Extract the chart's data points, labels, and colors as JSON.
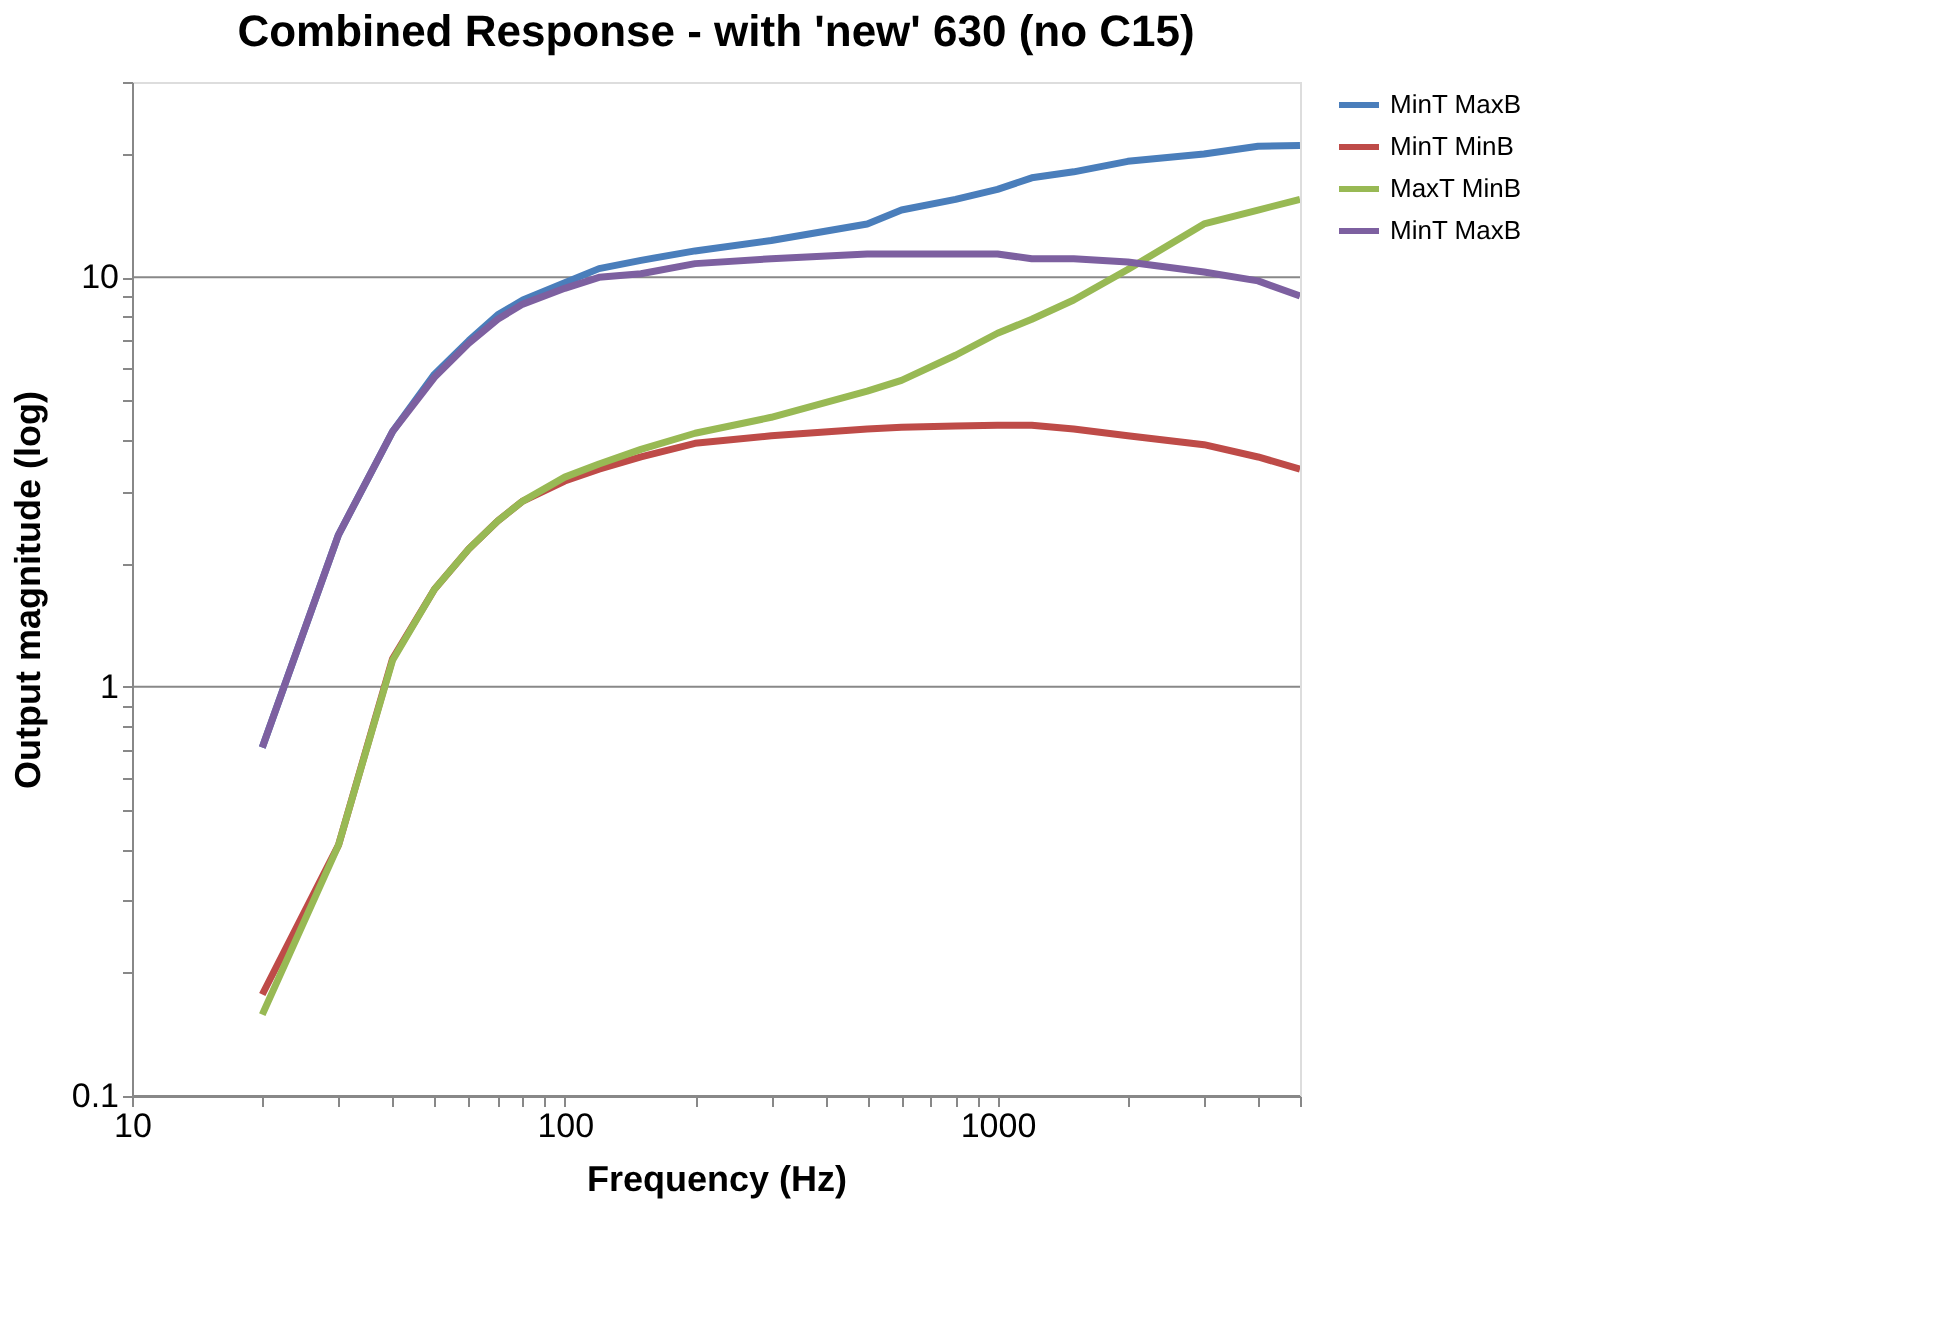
{
  "chart_data": {
    "type": "line",
    "title": "Combined Response - with 'new' 630 (no C15)",
    "xlabel": "Frequency (Hz)",
    "ylabel": "Output magnitude (log)",
    "log": "xy",
    "grid": "y",
    "legend": "right",
    "line_style": "solid",
    "marker": "none",
    "x": [
      20,
      30,
      40,
      50,
      60,
      70,
      80,
      100,
      120,
      150,
      200,
      300,
      500,
      600,
      800,
      1000,
      1200,
      1500,
      2000,
      3000,
      4000,
      5000
    ],
    "xlim": [
      10,
      5000
    ],
    "ylim": [
      0.1,
      30
    ],
    "xticks": [
      10,
      {
        "value": 20,
        "label": null
      },
      {
        "value": 30,
        "label": null
      },
      {
        "value": 40,
        "label": null
      },
      {
        "value": 50,
        "label": null
      },
      {
        "value": 60,
        "label": null
      },
      {
        "value": 70,
        "label": null
      },
      {
        "value": 80,
        "label": null
      },
      {
        "value": 90,
        "label": null
      },
      100,
      {
        "value": 200,
        "label": null
      },
      {
        "value": 300,
        "label": null
      },
      {
        "value": 400,
        "label": null
      },
      {
        "value": 500,
        "label": null
      },
      {
        "value": 600,
        "label": null
      },
      {
        "value": 700,
        "label": null
      },
      {
        "value": 800,
        "label": null
      },
      {
        "value": 900,
        "label": null
      },
      1000,
      {
        "value": 2000,
        "label": null
      },
      {
        "value": 3000,
        "label": null
      },
      {
        "value": 4000,
        "label": null
      },
      {
        "value": 5000,
        "label": null
      }
    ],
    "yticks": [
      0.1,
      {
        "value": 0.2,
        "label": null
      },
      {
        "value": 0.3,
        "label": null
      },
      {
        "value": 0.4,
        "label": null
      },
      {
        "value": 0.5,
        "label": null
      },
      {
        "value": 0.6,
        "label": null
      },
      {
        "value": 0.7,
        "label": null
      },
      {
        "value": 0.8,
        "label": null
      },
      {
        "value": 0.9,
        "label": null
      },
      1,
      {
        "value": 2,
        "label": null
      },
      {
        "value": 3,
        "label": null
      },
      {
        "value": 4,
        "label": null
      },
      {
        "value": 5,
        "label": null
      },
      {
        "value": 6,
        "label": null
      },
      {
        "value": 7,
        "label": null
      },
      {
        "value": 8,
        "label": null
      },
      {
        "value": 9,
        "label": null
      },
      10,
      {
        "value": 20,
        "label": null
      },
      {
        "value": 30,
        "label": null
      }
    ],
    "series": [
      {
        "name": "MinT MaxB",
        "color": "#4a7ebb",
        "values": [
          0.71,
          2.35,
          4.2,
          5.8,
          7.0,
          8.1,
          8.8,
          9.7,
          10.5,
          11,
          11.6,
          12.3,
          13.5,
          14.6,
          15.5,
          16.4,
          17.5,
          18.1,
          19.2,
          20,
          20.9,
          21
        ]
      },
      {
        "name": "MinT MinB",
        "color": "#be4b48",
        "values": [
          0.177,
          0.41,
          1.17,
          1.73,
          2.17,
          2.54,
          2.84,
          3.18,
          3.4,
          3.64,
          3.93,
          4.1,
          4.26,
          4.3,
          4.33,
          4.35,
          4.35,
          4.26,
          4.1,
          3.9,
          3.64,
          3.4
        ]
      },
      {
        "name": "MaxT MinB",
        "color": "#98b954",
        "values": [
          0.158,
          0.41,
          1.16,
          1.73,
          2.17,
          2.54,
          2.84,
          3.25,
          3.5,
          3.8,
          4.16,
          4.55,
          5.27,
          5.6,
          6.45,
          7.3,
          7.9,
          8.8,
          10.45,
          13.5,
          14.6,
          15.5
        ]
      },
      {
        "name": "MinT MaxB",
        "color": "#7d60a0",
        "values": [
          0.71,
          2.35,
          4.2,
          5.7,
          6.9,
          7.9,
          8.6,
          9.4,
          10,
          10.2,
          10.8,
          11.1,
          11.4,
          11.4,
          11.4,
          11.4,
          11.1,
          11.1,
          10.9,
          10.3,
          9.8,
          9.0
        ]
      }
    ]
  }
}
